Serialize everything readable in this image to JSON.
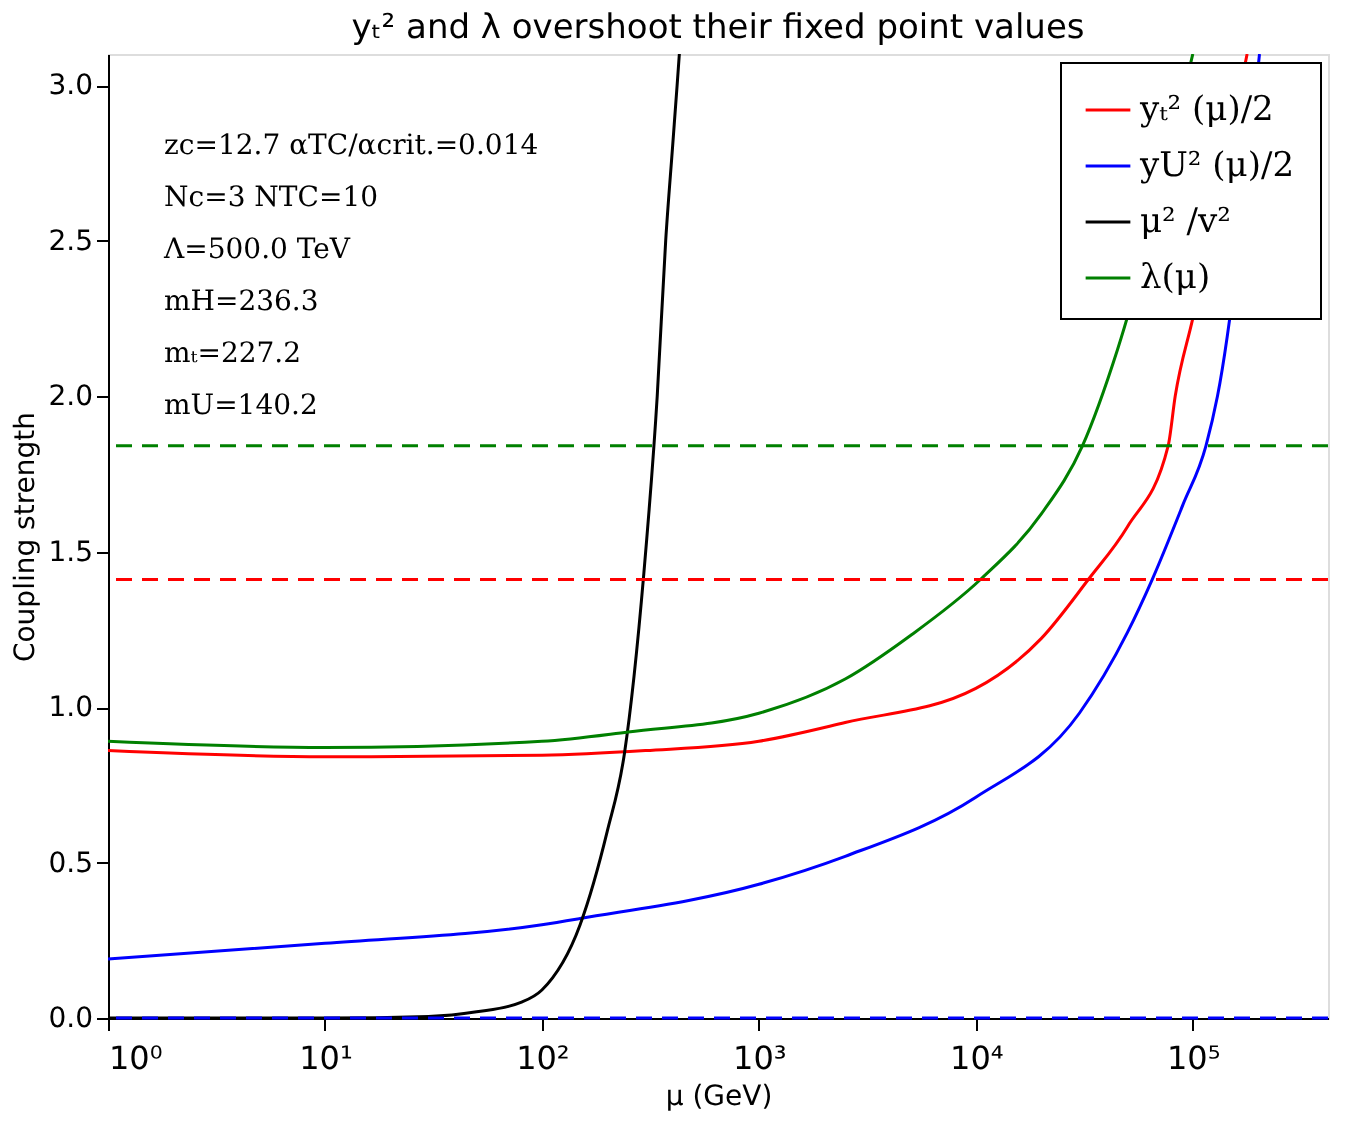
{
  "chart_data": {
    "type": "line",
    "title": "yₜ² and λ overshoot their fixed point values",
    "xlabel": "μ (GeV)",
    "ylabel": "Coupling strength",
    "log": "x",
    "xlim": [
      1,
      420000
    ],
    "ylim": [
      0,
      3.1
    ],
    "xticks": [
      {
        "value": 1,
        "label": "10⁰"
      },
      {
        "value": 10,
        "label": "10¹"
      },
      {
        "value": 100,
        "label": "10²"
      },
      {
        "value": 1000,
        "label": "10³"
      },
      {
        "value": 10000,
        "label": "10⁴"
      },
      {
        "value": 100000,
        "label": "10⁵"
      }
    ],
    "yticks": [
      {
        "value": 0,
        "label": "0.0"
      },
      0.5,
      {
        "value": 1,
        "label": "1.0"
      },
      1.5,
      {
        "value": 2,
        "label": "2.0"
      },
      2.5,
      {
        "value": 3,
        "label": "3.0"
      }
    ],
    "grid": false,
    "legend": "top right",
    "series": [
      {
        "name": "yₜ² (μ)/2",
        "color": "#ff0000",
        "x": [
          1,
          10,
          100,
          300,
          1000,
          2500,
          10000,
          20000,
          33000,
          50000,
          77000,
          83000,
          100000,
          178000
        ],
        "values": [
          0.86,
          0.84,
          0.845,
          0.86,
          0.89,
          0.95,
          1.06,
          1.22,
          1.41,
          1.58,
          1.84,
          2.0,
          2.25,
          3.1
        ]
      },
      {
        "name": "yU² (μ)/2",
        "color": "#0000ff",
        "x": [
          1,
          10,
          100,
          150,
          1000,
          2500,
          10000,
          30000,
          50000,
          65000,
          90000,
          115000,
          130000,
          203000
        ],
        "values": [
          0.19,
          0.24,
          0.3,
          0.32,
          0.43,
          0.52,
          0.71,
          0.98,
          1.24,
          1.41,
          1.65,
          1.84,
          2.0,
          3.1
        ]
      },
      {
        "name": "μ² /v²",
        "color": "#000000",
        "x": [
          1,
          10,
          30,
          50,
          80,
          100,
          150,
          200,
          240,
          295,
          340,
          372,
          400,
          420,
          430
        ],
        "values": [
          0,
          0,
          0.005,
          0.02,
          0.05,
          0.09,
          0.3,
          0.6,
          0.85,
          1.43,
          2.0,
          2.5,
          2.8,
          3.0,
          3.1
        ]
      },
      {
        "name": "λ(μ)",
        "color": "#008000",
        "x": [
          1,
          10,
          100,
          250,
          1000,
          2500,
          5000,
          10500,
          20000,
          31000,
          45000,
          100000
        ],
        "values": [
          0.89,
          0.87,
          0.89,
          0.92,
          0.98,
          1.09,
          1.23,
          1.41,
          1.62,
          1.84,
          2.15,
          3.1
        ]
      }
    ],
    "ref_lines": [
      {
        "axis": "y",
        "value": 1.84,
        "color": "#008000",
        "line_style": "dashed"
      },
      {
        "axis": "y",
        "value": 1.41,
        "color": "#ff0000",
        "line_style": "dashed"
      },
      {
        "axis": "y",
        "value": 0,
        "color": "#0000ff",
        "line_style": "dashed"
      }
    ],
    "annotations": [
      "zc=12.7     αTC/αcrit.=0.014",
      "Nc=3     NTC=10",
      "Λ=500.0 TeV",
      "mH=236.3",
      "mₜ=227.2",
      "mU=140.2"
    ]
  }
}
